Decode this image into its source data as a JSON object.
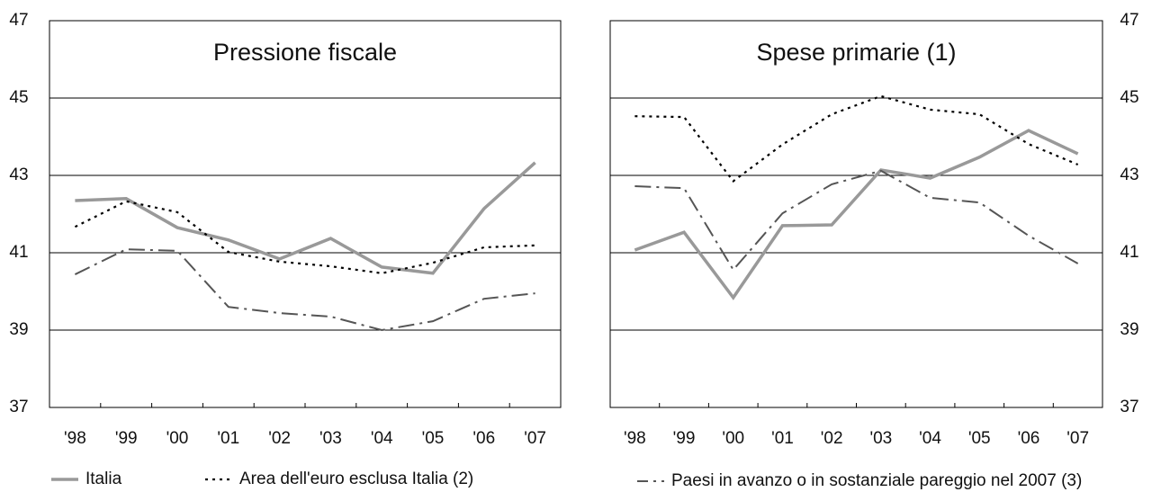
{
  "chart_data": [
    {
      "type": "line",
      "title": "Pressione fiscale",
      "categories": [
        "'98",
        "'99",
        "'00",
        "'01",
        "'02",
        "'03",
        "'04",
        "'05",
        "'06",
        "'07"
      ],
      "series": [
        {
          "name": "Italia",
          "color": "#999999",
          "style": "solid",
          "values": [
            42.35,
            42.4,
            41.65,
            41.33,
            40.84,
            41.37,
            40.63,
            40.47,
            42.14,
            43.33
          ]
        },
        {
          "name": "Area dell'euro esclusa Italia (2)",
          "color": "#000000",
          "style": "dotted",
          "values": [
            41.67,
            42.33,
            42.05,
            41.02,
            40.77,
            40.65,
            40.47,
            40.74,
            41.14,
            41.19
          ]
        },
        {
          "name": "Paesi in avanzo o in sostanziale pareggio nel 2007 (3)",
          "color": "#555555",
          "style": "dashdot",
          "values": [
            40.44,
            41.09,
            41.05,
            39.6,
            39.44,
            39.35,
            39.0,
            39.23,
            39.81,
            39.95
          ]
        }
      ],
      "ylim": [
        37,
        47
      ],
      "yticks": [
        37,
        39,
        41,
        43,
        45,
        47
      ],
      "y_axis_side": "left",
      "grid": true
    },
    {
      "type": "line",
      "title": "Spese primarie (1)",
      "categories": [
        "'98",
        "'99",
        "'00",
        "'01",
        "'02",
        "'03",
        "'04",
        "'05",
        "'06",
        "'07"
      ],
      "series": [
        {
          "color": "#999999",
          "style": "solid",
          "values": [
            41.07,
            41.53,
            39.84,
            41.7,
            41.72,
            43.14,
            42.93,
            43.47,
            44.16,
            43.56
          ]
        },
        {
          "color": "#000000",
          "style": "dotted",
          "values": [
            44.53,
            44.51,
            42.85,
            43.8,
            44.58,
            45.05,
            44.7,
            44.58,
            43.81,
            43.28
          ]
        },
        {
          "color": "#555555",
          "style": "dashdot",
          "values": [
            42.72,
            42.67,
            40.56,
            42.02,
            42.77,
            43.12,
            42.42,
            42.3,
            41.44,
            40.72
          ]
        }
      ],
      "ylim": [
        37,
        47
      ],
      "yticks": [
        37,
        39,
        41,
        43,
        45,
        47
      ],
      "y_axis_side": "right",
      "grid": true
    }
  ]
}
